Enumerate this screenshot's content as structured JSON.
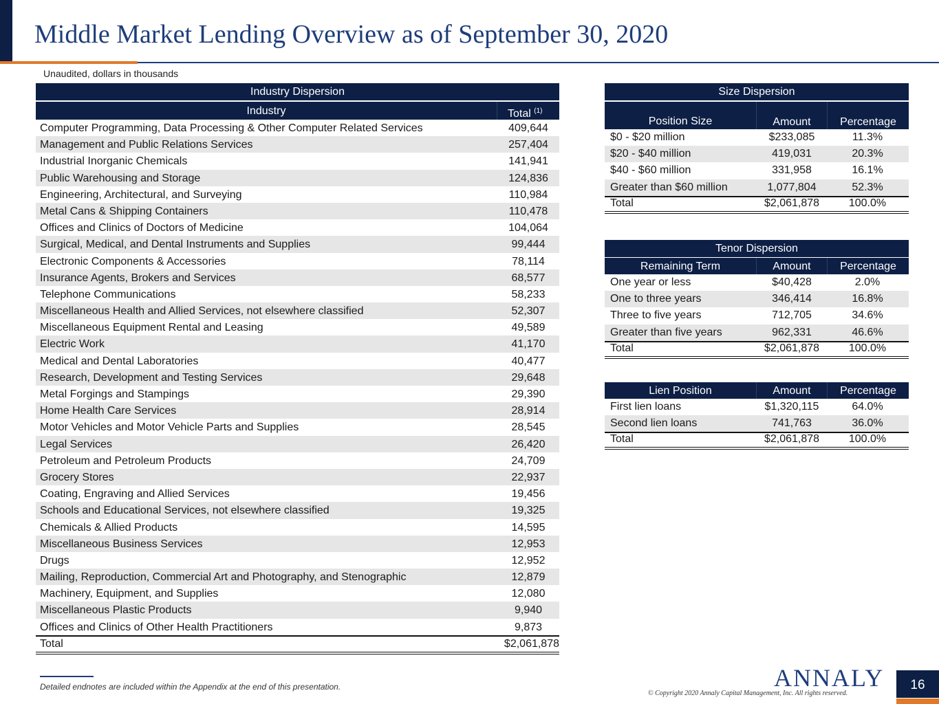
{
  "title": "Middle Market Lending Overview as of September 30, 2020",
  "subtitle": "Unaudited, dollars in thousands",
  "industry_table": {
    "header": "Industry Dispersion",
    "col_industry": "Industry",
    "col_total": "Total",
    "col_total_note": "(1)",
    "rows": [
      {
        "name": "Computer Programming, Data Processing & Other Computer Related Services",
        "total": "409,644"
      },
      {
        "name": "Management and Public Relations Services",
        "total": "257,404"
      },
      {
        "name": "Industrial Inorganic Chemicals",
        "total": "141,941"
      },
      {
        "name": "Public Warehousing and Storage",
        "total": "124,836"
      },
      {
        "name": "Engineering, Architectural, and Surveying",
        "total": "110,984"
      },
      {
        "name": "Metal Cans & Shipping Containers",
        "total": "110,478"
      },
      {
        "name": "Offices and Clinics of Doctors of Medicine",
        "total": "104,064"
      },
      {
        "name": "Surgical, Medical, and Dental Instruments and Supplies",
        "total": "99,444"
      },
      {
        "name": "Electronic Components & Accessories",
        "total": "78,114"
      },
      {
        "name": "Insurance Agents, Brokers and Services",
        "total": "68,577"
      },
      {
        "name": "Telephone Communications",
        "total": "58,233"
      },
      {
        "name": "Miscellaneous Health and Allied Services, not elsewhere classified",
        "total": "52,307"
      },
      {
        "name": "Miscellaneous Equipment Rental and Leasing",
        "total": "49,589"
      },
      {
        "name": "Electric Work",
        "total": "41,170"
      },
      {
        "name": "Medical and Dental Laboratories",
        "total": "40,477"
      },
      {
        "name": "Research, Development and Testing Services",
        "total": "29,648"
      },
      {
        "name": "Metal Forgings and Stampings",
        "total": "29,390"
      },
      {
        "name": "Home Health Care Services",
        "total": "28,914"
      },
      {
        "name": "Motor Vehicles and Motor Vehicle Parts and Supplies",
        "total": "28,545"
      },
      {
        "name": "Legal Services",
        "total": "26,420"
      },
      {
        "name": "Petroleum and Petroleum Products",
        "total": "24,709"
      },
      {
        "name": "Grocery Stores",
        "total": "22,937"
      },
      {
        "name": "Coating, Engraving and Allied Services",
        "total": "19,456"
      },
      {
        "name": "Schools and Educational Services, not elsewhere classified",
        "total": "19,325"
      },
      {
        "name": "Chemicals & Allied Products",
        "total": "14,595"
      },
      {
        "name": "Miscellaneous Business Services",
        "total": "12,953"
      },
      {
        "name": "Drugs",
        "total": "12,952"
      },
      {
        "name": "Mailing, Reproduction, Commercial Art and Photography, and Stenographic",
        "total": "12,879"
      },
      {
        "name": "Machinery, Equipment, and Supplies",
        "total": "12,080"
      },
      {
        "name": "Miscellaneous Plastic Products",
        "total": "9,940"
      },
      {
        "name": "Offices and Clinics of Other Health Practitioners",
        "total": "9,873"
      }
    ],
    "total_label": "Total",
    "total_value": "$2,061,878"
  },
  "size_table": {
    "header": "Size Dispersion",
    "col_a": "Position Size",
    "col_b": "Amount",
    "col_c": "Percentage",
    "rows": [
      {
        "a": "$0 - $20 million",
        "b": "$233,085",
        "c": "11.3%"
      },
      {
        "a": "$20 - $40 million",
        "b": "419,031",
        "c": "20.3%"
      },
      {
        "a": "$40 - $60 million",
        "b": "331,958",
        "c": "16.1%"
      },
      {
        "a": "Greater than $60 million",
        "b": "1,077,804",
        "c": "52.3%"
      }
    ],
    "total": {
      "a": "Total",
      "b": "$2,061,878",
      "c": "100.0%"
    }
  },
  "tenor_table": {
    "header": "Tenor Dispersion",
    "col_a": "Remaining Term",
    "col_b": "Amount",
    "col_c": "Percentage",
    "rows": [
      {
        "a": "One year or less",
        "b": "$40,428",
        "c": "2.0%"
      },
      {
        "a": "One to three years",
        "b": "346,414",
        "c": "16.8%"
      },
      {
        "a": "Three to five years",
        "b": "712,705",
        "c": "34.6%"
      },
      {
        "a": "Greater than five years",
        "b": "962,331",
        "c": "46.6%"
      }
    ],
    "total": {
      "a": "Total",
      "b": "$2,061,878",
      "c": "100.0%"
    }
  },
  "lien_table": {
    "col_a": "Lien Position",
    "col_b": "Amount",
    "col_c": "Percentage",
    "rows": [
      {
        "a": "First lien loans",
        "b": "$1,320,115",
        "c": "64.0%"
      },
      {
        "a": "Second lien loans",
        "b": "741,763",
        "c": "36.0%"
      }
    ],
    "total": {
      "a": "Total",
      "b": "$2,061,878",
      "c": "100.0%"
    }
  },
  "footnote": "Detailed endnotes are included within the Appendix at the end of this presentation.",
  "logo_text": "ANNALY",
  "copyright": "© Copyright 2020 Annaly Capital Management, Inc.  All rights reserved.",
  "page_number": "16",
  "colors": {
    "navy": "#0d1f45",
    "title_blue": "#1e3d7a",
    "accent_orange": "#e07a2a",
    "row_alt": "#e6e6e6"
  }
}
